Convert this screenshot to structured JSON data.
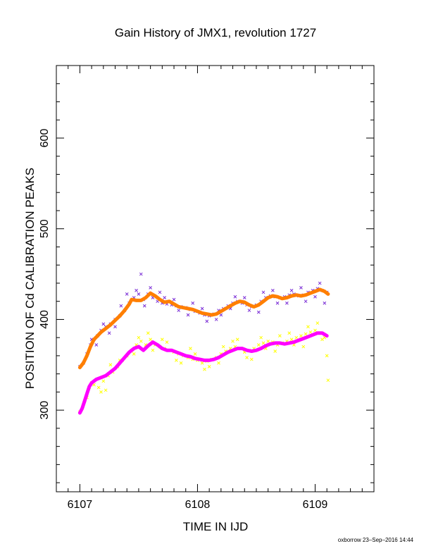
{
  "chart_data": {
    "type": "scatter",
    "title": "Gain History of JMX1, revolution 1727",
    "xlabel": "TIME IN IJD",
    "ylabel": "POSITION OF Cd CALIBRATION PEAKS",
    "xlim": [
      6106.8,
      6109.5
    ],
    "ylim": [
      210,
      680
    ],
    "x_ticks": [
      6107,
      6108,
      6109
    ],
    "y_ticks": [
      300,
      400,
      500,
      600
    ],
    "grid": false,
    "legend": "none",
    "series": [
      {
        "color": "#7b2fd6",
        "marker": "x",
        "points": [
          [
            6107.0,
            348
          ],
          [
            6107.03,
            352
          ],
          [
            6107.06,
            362
          ],
          [
            6107.09,
            372
          ],
          [
            6107.12,
            378
          ],
          [
            6107.15,
            382
          ],
          [
            6107.18,
            388
          ],
          [
            6107.22,
            392
          ],
          [
            6107.26,
            395
          ],
          [
            6107.3,
            400
          ],
          [
            6107.34,
            404
          ],
          [
            6107.38,
            410
          ],
          [
            6107.42,
            418
          ],
          [
            6107.46,
            424
          ],
          [
            6107.5,
            428
          ],
          [
            6107.54,
            422
          ],
          [
            6107.58,
            428
          ],
          [
            6107.62,
            424
          ],
          [
            6107.66,
            420
          ],
          [
            6107.7,
            418
          ],
          [
            6107.74,
            417
          ],
          [
            6107.78,
            416
          ],
          [
            6107.82,
            415
          ],
          [
            6107.86,
            414
          ],
          [
            6107.9,
            413
          ],
          [
            6107.94,
            411
          ],
          [
            6107.98,
            409
          ],
          [
            6108.02,
            407
          ],
          [
            6108.06,
            405
          ],
          [
            6108.1,
            404
          ],
          [
            6108.14,
            406
          ],
          [
            6108.18,
            410
          ],
          [
            6108.22,
            412
          ],
          [
            6108.26,
            415
          ],
          [
            6108.3,
            418
          ],
          [
            6108.34,
            420
          ],
          [
            6108.38,
            418
          ],
          [
            6108.42,
            416
          ],
          [
            6108.46,
            414
          ],
          [
            6108.5,
            416
          ],
          [
            6108.54,
            420
          ],
          [
            6108.58,
            424
          ],
          [
            6108.62,
            426
          ],
          [
            6108.66,
            425
          ],
          [
            6108.7,
            424
          ],
          [
            6108.74,
            425
          ],
          [
            6108.78,
            427
          ],
          [
            6108.82,
            428
          ],
          [
            6108.86,
            426
          ],
          [
            6108.9,
            427
          ],
          [
            6108.94,
            430
          ],
          [
            6108.98,
            432
          ],
          [
            6109.02,
            434
          ],
          [
            6109.06,
            432
          ],
          [
            6109.1,
            430
          ],
          [
            6107.1,
            378
          ],
          [
            6107.2,
            395
          ],
          [
            6107.35,
            415
          ],
          [
            6107.48,
            432
          ],
          [
            6107.6,
            435
          ],
          [
            6107.72,
            424
          ],
          [
            6107.84,
            410
          ],
          [
            6107.96,
            418
          ],
          [
            6108.08,
            398
          ],
          [
            6108.2,
            405
          ],
          [
            6108.32,
            425
          ],
          [
            6108.44,
            410
          ],
          [
            6108.56,
            430
          ],
          [
            6108.68,
            418
          ],
          [
            6108.8,
            432
          ],
          [
            6108.92,
            420
          ],
          [
            6109.04,
            440
          ],
          [
            6107.25,
            385
          ],
          [
            6107.4,
            428
          ],
          [
            6107.55,
            415
          ],
          [
            6107.68,
            430
          ],
          [
            6107.8,
            422
          ],
          [
            6107.92,
            405
          ],
          [
            6108.04,
            412
          ],
          [
            6108.16,
            400
          ],
          [
            6108.28,
            412
          ],
          [
            6108.4,
            424
          ],
          [
            6108.52,
            408
          ],
          [
            6108.64,
            432
          ],
          [
            6108.76,
            418
          ],
          [
            6108.88,
            435
          ],
          [
            6109.0,
            425
          ],
          [
            6109.08,
            418
          ],
          [
            6107.52,
            450
          ],
          [
            6107.14,
            372
          ],
          [
            6107.3,
            392
          ]
        ]
      },
      {
        "color": "#ff7f00",
        "marker": "line",
        "points": [
          [
            6107.0,
            347
          ],
          [
            6107.03,
            352
          ],
          [
            6107.06,
            360
          ],
          [
            6107.09,
            370
          ],
          [
            6107.12,
            378
          ],
          [
            6107.15,
            382
          ],
          [
            6107.18,
            386
          ],
          [
            6107.22,
            390
          ],
          [
            6107.26,
            394
          ],
          [
            6107.3,
            399
          ],
          [
            6107.34,
            404
          ],
          [
            6107.38,
            410
          ],
          [
            6107.42,
            417
          ],
          [
            6107.44,
            422
          ],
          [
            6107.48,
            421
          ],
          [
            6107.52,
            421
          ],
          [
            6107.56,
            424
          ],
          [
            6107.6,
            429
          ],
          [
            6107.64,
            426
          ],
          [
            6107.68,
            422
          ],
          [
            6107.72,
            419
          ],
          [
            6107.76,
            420
          ],
          [
            6107.8,
            417
          ],
          [
            6107.84,
            414
          ],
          [
            6107.88,
            413
          ],
          [
            6107.92,
            412
          ],
          [
            6107.96,
            411
          ],
          [
            6108.0,
            409
          ],
          [
            6108.04,
            407
          ],
          [
            6108.08,
            406
          ],
          [
            6108.12,
            405
          ],
          [
            6108.16,
            406
          ],
          [
            6108.2,
            409
          ],
          [
            6108.24,
            412
          ],
          [
            6108.28,
            415
          ],
          [
            6108.32,
            418
          ],
          [
            6108.36,
            420
          ],
          [
            6108.4,
            419
          ],
          [
            6108.44,
            416
          ],
          [
            6108.48,
            414
          ],
          [
            6108.52,
            416
          ],
          [
            6108.56,
            420
          ],
          [
            6108.6,
            424
          ],
          [
            6108.64,
            426
          ],
          [
            6108.68,
            425
          ],
          [
            6108.72,
            423
          ],
          [
            6108.76,
            424
          ],
          [
            6108.8,
            426
          ],
          [
            6108.84,
            427
          ],
          [
            6108.88,
            426
          ],
          [
            6108.92,
            427
          ],
          [
            6108.96,
            429
          ],
          [
            6109.0,
            431
          ],
          [
            6109.04,
            433
          ],
          [
            6109.08,
            431
          ],
          [
            6109.11,
            428
          ]
        ]
      },
      {
        "color": "#ffff00",
        "marker": "x",
        "points": [
          [
            6107.0,
            298
          ],
          [
            6107.04,
            310
          ],
          [
            6107.08,
            325
          ],
          [
            6107.12,
            328
          ],
          [
            6107.16,
            325
          ],
          [
            6107.2,
            332
          ],
          [
            6107.24,
            338
          ],
          [
            6107.28,
            342
          ],
          [
            6107.32,
            348
          ],
          [
            6107.36,
            355
          ],
          [
            6107.4,
            360
          ],
          [
            6107.44,
            366
          ],
          [
            6107.48,
            372
          ],
          [
            6107.52,
            376
          ],
          [
            6107.56,
            372
          ],
          [
            6107.6,
            378
          ],
          [
            6107.64,
            372
          ],
          [
            6107.68,
            370
          ],
          [
            6107.72,
            368
          ],
          [
            6107.76,
            366
          ],
          [
            6107.8,
            364
          ],
          [
            6107.84,
            362
          ],
          [
            6107.88,
            360
          ],
          [
            6107.92,
            358
          ],
          [
            6107.96,
            356
          ],
          [
            6108.0,
            355
          ],
          [
            6108.04,
            352
          ],
          [
            6108.08,
            354
          ],
          [
            6108.12,
            356
          ],
          [
            6108.16,
            358
          ],
          [
            6108.2,
            362
          ],
          [
            6108.24,
            365
          ],
          [
            6108.28,
            368
          ],
          [
            6108.32,
            370
          ],
          [
            6108.36,
            368
          ],
          [
            6108.4,
            364
          ],
          [
            6108.44,
            366
          ],
          [
            6108.48,
            368
          ],
          [
            6108.52,
            372
          ],
          [
            6108.56,
            374
          ],
          [
            6108.6,
            376
          ],
          [
            6108.64,
            375
          ],
          [
            6108.68,
            372
          ],
          [
            6108.72,
            374
          ],
          [
            6108.76,
            376
          ],
          [
            6108.8,
            378
          ],
          [
            6108.84,
            380
          ],
          [
            6108.88,
            382
          ],
          [
            6108.92,
            384
          ],
          [
            6108.96,
            386
          ],
          [
            6109.0,
            388
          ],
          [
            6109.04,
            385
          ],
          [
            6109.08,
            380
          ],
          [
            6109.1,
            360
          ],
          [
            6109.11,
            333
          ],
          [
            6107.1,
            330
          ],
          [
            6107.22,
            322
          ],
          [
            6107.34,
            355
          ],
          [
            6107.46,
            362
          ],
          [
            6107.58,
            385
          ],
          [
            6107.7,
            378
          ],
          [
            6107.82,
            355
          ],
          [
            6107.94,
            368
          ],
          [
            6108.06,
            345
          ],
          [
            6108.18,
            352
          ],
          [
            6108.3,
            376
          ],
          [
            6108.42,
            358
          ],
          [
            6108.54,
            380
          ],
          [
            6108.66,
            365
          ],
          [
            6108.78,
            385
          ],
          [
            6108.9,
            370
          ],
          [
            6109.02,
            396
          ],
          [
            6107.26,
            350
          ],
          [
            6107.5,
            380
          ],
          [
            6107.62,
            366
          ],
          [
            6107.74,
            375
          ],
          [
            6107.86,
            352
          ],
          [
            6107.98,
            362
          ],
          [
            6108.1,
            348
          ],
          [
            6108.22,
            370
          ],
          [
            6108.34,
            378
          ],
          [
            6108.46,
            356
          ],
          [
            6108.58,
            368
          ],
          [
            6108.7,
            382
          ],
          [
            6108.82,
            372
          ],
          [
            6108.94,
            392
          ],
          [
            6109.06,
            378
          ],
          [
            6107.06,
            314
          ],
          [
            6107.18,
            320
          ]
        ]
      },
      {
        "color": "#ff00ff",
        "marker": "line",
        "points": [
          [
            6107.0,
            297
          ],
          [
            6107.02,
            302
          ],
          [
            6107.04,
            310
          ],
          [
            6107.06,
            318
          ],
          [
            6107.08,
            326
          ],
          [
            6107.1,
            330
          ],
          [
            6107.14,
            334
          ],
          [
            6107.18,
            336
          ],
          [
            6107.22,
            338
          ],
          [
            6107.26,
            342
          ],
          [
            6107.3,
            346
          ],
          [
            6107.34,
            352
          ],
          [
            6107.38,
            358
          ],
          [
            6107.42,
            364
          ],
          [
            6107.46,
            368
          ],
          [
            6107.5,
            370
          ],
          [
            6107.54,
            366
          ],
          [
            6107.58,
            371
          ],
          [
            6107.62,
            375
          ],
          [
            6107.66,
            372
          ],
          [
            6107.7,
            368
          ],
          [
            6107.74,
            366
          ],
          [
            6107.78,
            366
          ],
          [
            6107.82,
            364
          ],
          [
            6107.86,
            362
          ],
          [
            6107.9,
            360
          ],
          [
            6107.94,
            359
          ],
          [
            6107.98,
            357
          ],
          [
            6108.02,
            356
          ],
          [
            6108.06,
            355
          ],
          [
            6108.1,
            355
          ],
          [
            6108.14,
            356
          ],
          [
            6108.18,
            358
          ],
          [
            6108.22,
            361
          ],
          [
            6108.26,
            364
          ],
          [
            6108.3,
            366
          ],
          [
            6108.34,
            368
          ],
          [
            6108.38,
            368
          ],
          [
            6108.42,
            366
          ],
          [
            6108.46,
            365
          ],
          [
            6108.5,
            366
          ],
          [
            6108.54,
            368
          ],
          [
            6108.58,
            371
          ],
          [
            6108.62,
            373
          ],
          [
            6108.66,
            374
          ],
          [
            6108.7,
            374
          ],
          [
            6108.74,
            373
          ],
          [
            6108.78,
            374
          ],
          [
            6108.82,
            375
          ],
          [
            6108.86,
            377
          ],
          [
            6108.9,
            379
          ],
          [
            6108.94,
            381
          ],
          [
            6108.98,
            383
          ],
          [
            6109.02,
            385
          ],
          [
            6109.06,
            385
          ],
          [
            6109.1,
            382
          ]
        ]
      }
    ]
  },
  "footer_text": "oxborrow 23–Sep–2016 14:44"
}
